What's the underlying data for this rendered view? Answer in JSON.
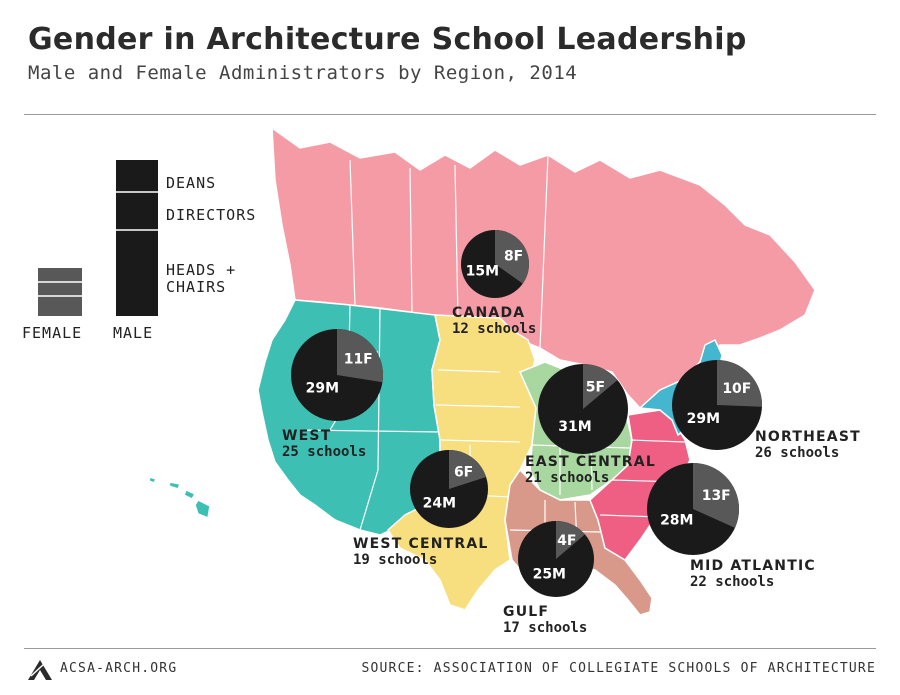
{
  "header": {
    "title": "Gender in Architecture School Leadership",
    "subtitle": "Male and Female Administrators by Region, 2014"
  },
  "legend": {
    "female_label": "FEMALE",
    "male_label": "MALE",
    "deans_label": "DEANS",
    "directors_label": "DIRECTORS",
    "heads_line1": "HEADS +",
    "heads_line2": "CHAIRS"
  },
  "footer": {
    "site": "ACSA-ARCH.ORG",
    "source": "SOURCE: ASSOCIATION OF COLLEGIATE SCHOOLS OF ARCHITECTURE"
  },
  "colors": {
    "canada": "#f59ba6",
    "west": "#3dbfb3",
    "west_central": "#f7de7e",
    "east_central": "#a8d7a0",
    "gulf": "#d9998a",
    "mid_atlantic": "#ef5f84",
    "northeast": "#44b6cf",
    "male_pie": "#1a1a1a",
    "female_pie": "#585858"
  },
  "chart_data": {
    "type": "pie",
    "title": "Gender in Architecture School Leadership",
    "subtitle": "Male and Female Administrators by Region, 2014",
    "regions": [
      {
        "name": "CANADA",
        "schools_text": "12 schools",
        "schools": 12,
        "male": 15,
        "female": 8,
        "male_label": "15M",
        "female_label": "8F"
      },
      {
        "name": "WEST",
        "schools_text": "25 schools",
        "schools": 25,
        "male": 29,
        "female": 11,
        "male_label": "29M",
        "female_label": "11F"
      },
      {
        "name": "WEST CENTRAL",
        "schools_text": "19 schools",
        "schools": 19,
        "male": 24,
        "female": 6,
        "male_label": "24M",
        "female_label": "6F"
      },
      {
        "name": "EAST CENTRAL",
        "schools_text": "21 schools",
        "schools": 21,
        "male": 31,
        "female": 5,
        "male_label": "31M",
        "female_label": "5F"
      },
      {
        "name": "GULF",
        "schools_text": "17 schools",
        "schools": 17,
        "male": 25,
        "female": 4,
        "male_label": "25M",
        "female_label": "4F"
      },
      {
        "name": "NORTHEAST",
        "schools_text": "26 schools",
        "schools": 26,
        "male": 29,
        "female": 10,
        "male_label": "29M",
        "female_label": "10F"
      },
      {
        "name": "MID ATLANTIC",
        "schools_text": "22 schools",
        "schools": 22,
        "male": 28,
        "female": 13,
        "male_label": "28M",
        "female_label": "13F"
      }
    ]
  }
}
